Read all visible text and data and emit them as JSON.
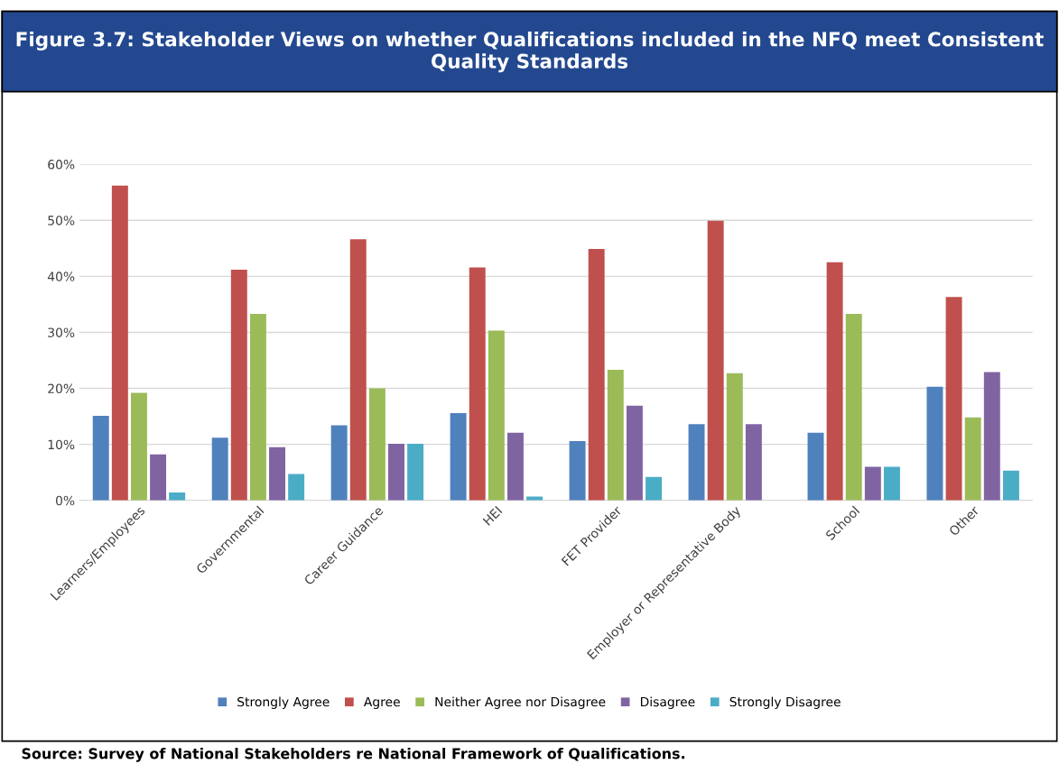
{
  "chart_data": {
    "type": "bar",
    "title": "Figure 3.7: Stakeholder Views on whether Qualifications included in the NFQ meet Consistent Quality Standards",
    "categories": [
      "Learners/Employees",
      "Governmental",
      "Career Guidance",
      "HEI",
      "FET Provider",
      "Employer or Representative Body",
      "School",
      "Other"
    ],
    "series": [
      {
        "name": "Strongly Agree",
        "color": "#4f81bd",
        "values": [
          15.1,
          11.2,
          13.4,
          15.6,
          10.6,
          13.6,
          12.1,
          20.3
        ]
      },
      {
        "name": "Agree",
        "color": "#c0504d",
        "values": [
          56.2,
          41.2,
          46.6,
          41.6,
          44.9,
          49.9,
          42.5,
          36.3
        ]
      },
      {
        "name": "Neither Agree nor Disagree",
        "color": "#9bbb59",
        "values": [
          19.2,
          33.3,
          20.0,
          30.3,
          23.3,
          22.7,
          33.3,
          14.8
        ]
      },
      {
        "name": "Disagree",
        "color": "#8064a2",
        "values": [
          8.2,
          9.5,
          10.1,
          12.1,
          16.9,
          13.6,
          6.0,
          22.9
        ]
      },
      {
        "name": "Strongly Disagree",
        "color": "#4bacc6",
        "values": [
          1.4,
          4.7,
          10.1,
          0.7,
          4.2,
          0,
          6.0,
          5.3
        ]
      }
    ],
    "ylim": [
      0,
      60
    ],
    "yticks": [
      {
        "value": 0,
        "label": "0%"
      },
      {
        "value": 10,
        "label": "10%"
      },
      {
        "value": 20,
        "label": "20%"
      },
      {
        "value": 30,
        "label": "30%"
      },
      {
        "value": 40,
        "label": "40%"
      },
      {
        "value": 50,
        "label": "50%"
      },
      {
        "value": 60,
        "label": "60%"
      }
    ],
    "grid": "y",
    "legend": "bottom",
    "annotations": [
      "Source: Survey of National Stakeholders re National Framework of Qualifications."
    ]
  }
}
